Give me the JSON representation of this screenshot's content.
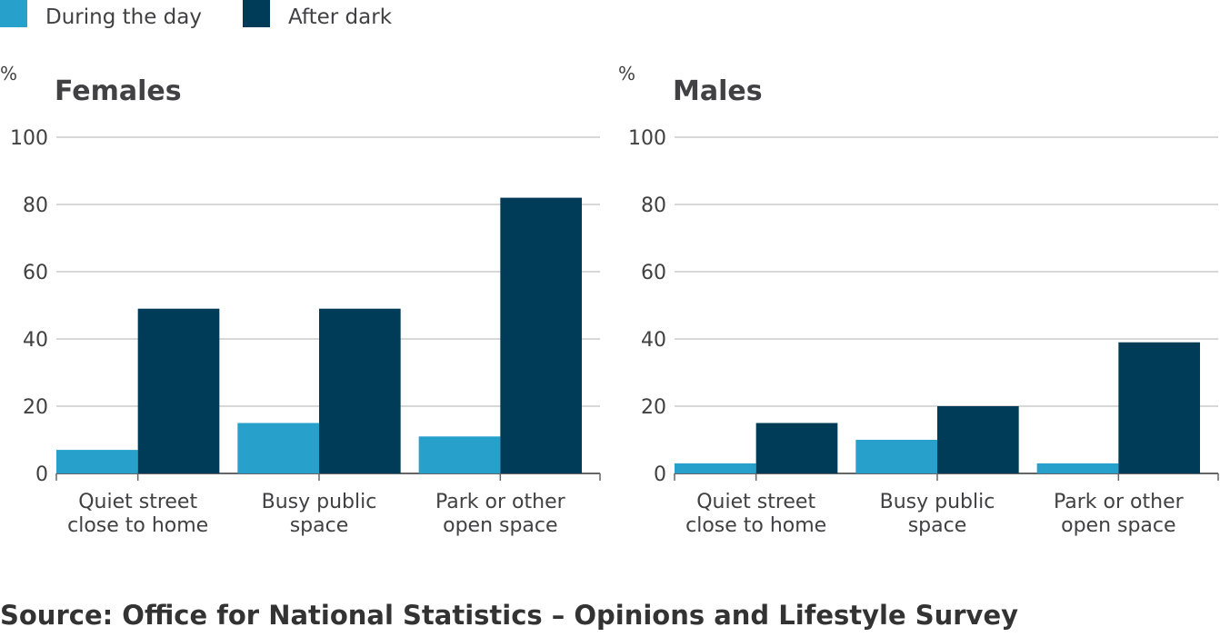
{
  "legend": [
    {
      "label": "During the day",
      "color": "#27a0cc"
    },
    {
      "label": "After dark",
      "color": "#003c57"
    }
  ],
  "chart_data": [
    {
      "type": "bar",
      "title": "Females",
      "ylabel": "%",
      "ylim": [
        0,
        100
      ],
      "yticks": [
        0,
        20,
        40,
        60,
        80,
        100
      ],
      "grid": true,
      "legend_position": "top-left",
      "categories": [
        [
          "Quiet street",
          "close to home"
        ],
        [
          "Busy public",
          "space"
        ],
        [
          "Park or other",
          "open space"
        ]
      ],
      "series": [
        {
          "name": "During the day",
          "color": "#27a0cc",
          "values": [
            7,
            15,
            11
          ]
        },
        {
          "name": "After dark",
          "color": "#003c57",
          "values": [
            49,
            49,
            82
          ]
        }
      ]
    },
    {
      "type": "bar",
      "title": "Males",
      "ylabel": "%",
      "ylim": [
        0,
        100
      ],
      "yticks": [
        0,
        20,
        40,
        60,
        80,
        100
      ],
      "grid": true,
      "legend_position": "top-left",
      "categories": [
        [
          "Quiet street",
          "close to home"
        ],
        [
          "Busy public",
          "space"
        ],
        [
          "Park or other",
          "open space"
        ]
      ],
      "series": [
        {
          "name": "During the day",
          "color": "#27a0cc",
          "values": [
            3,
            10,
            3
          ]
        },
        {
          "name": "After dark",
          "color": "#003c57",
          "values": [
            15,
            20,
            39
          ]
        }
      ]
    }
  ],
  "source": "Source: Office for National Statistics – Opinions and Lifestyle Survey"
}
